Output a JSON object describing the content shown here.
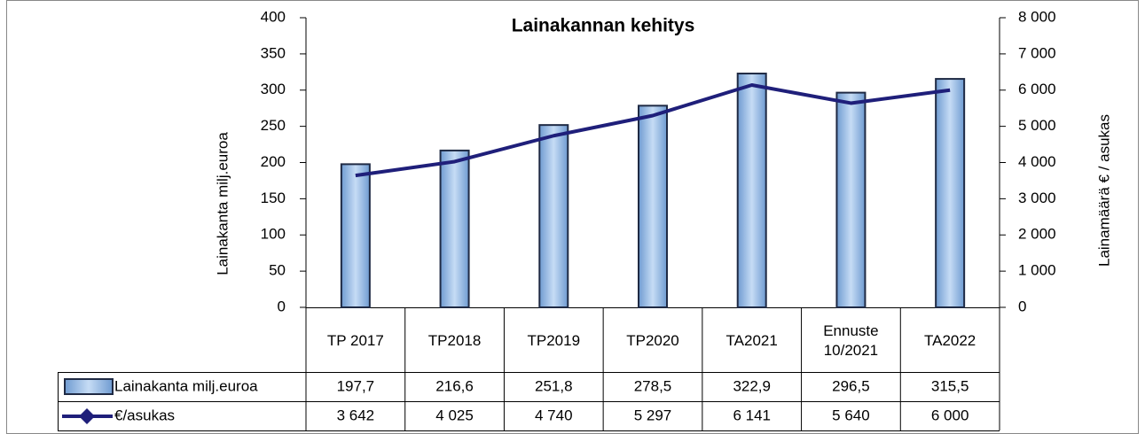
{
  "chart_data": {
    "type": "bar-line",
    "title": "Lainakannan kehitys",
    "categories": [
      "TP 2017",
      "TP2018",
      "TP2019",
      "TP2020",
      "TA2021",
      "Ennuste 10/2021",
      "TA2022"
    ],
    "series": [
      {
        "name": "Lainakanta milj.euroa",
        "type": "bar",
        "color": "#8db4e2",
        "values": [
          197.7,
          216.6,
          251.8,
          278.5,
          322.9,
          296.5,
          315.5
        ],
        "value_labels": [
          "197,7",
          "216,6",
          "251,8",
          "278,5",
          "322,9",
          "296,5",
          "315,5"
        ]
      },
      {
        "name": "€/asukas",
        "type": "line",
        "axis": "y2",
        "color": "#1f1f7a",
        "values": [
          3642,
          4025,
          4740,
          5297,
          6141,
          5640,
          6000
        ],
        "value_labels": [
          "3 642",
          "4 025",
          "4 740",
          "5 297",
          "6 141",
          "5 640",
          "6 000"
        ]
      }
    ],
    "ylabel": "Lainakanta milj.euroa",
    "y2label": "Lainamäärä € / asukas",
    "ylim": [
      0,
      400
    ],
    "yticks": [
      0,
      50,
      100,
      150,
      200,
      250,
      300,
      350,
      400
    ],
    "y2lim": [
      0,
      8000
    ],
    "y2ticks": [
      0,
      {
        "value": 1000,
        "label": "1 000"
      },
      {
        "value": 2000,
        "label": "2 000"
      },
      {
        "value": 3000,
        "label": "3 000"
      },
      {
        "value": 4000,
        "label": "4 000"
      },
      {
        "value": 5000,
        "label": "5 000"
      },
      {
        "value": 6000,
        "label": "6 000"
      },
      {
        "value": 7000,
        "label": "7 000"
      },
      {
        "value": 8000,
        "label": "8 000"
      }
    ],
    "grid": false
  }
}
